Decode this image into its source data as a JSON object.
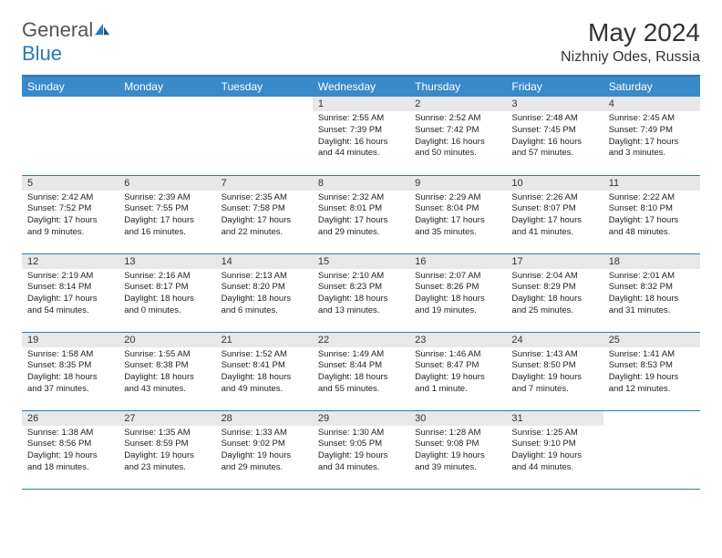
{
  "logo": {
    "text1": "General",
    "text2": "Blue"
  },
  "title": "May 2024",
  "location": "Nizhniy Odes, Russia",
  "colors": {
    "header_bg": "#3a8ac9",
    "line": "#2a7ab9",
    "daynum_bg": "#e8e8e8",
    "text": "#222222",
    "logo_gray": "#555555"
  },
  "weekdays": [
    "Sunday",
    "Monday",
    "Tuesday",
    "Wednesday",
    "Thursday",
    "Friday",
    "Saturday"
  ],
  "weeks": [
    [
      null,
      null,
      null,
      {
        "n": "1",
        "sr": "2:55 AM",
        "ss": "7:39 PM",
        "dl": "16 hours and 44 minutes."
      },
      {
        "n": "2",
        "sr": "2:52 AM",
        "ss": "7:42 PM",
        "dl": "16 hours and 50 minutes."
      },
      {
        "n": "3",
        "sr": "2:48 AM",
        "ss": "7:45 PM",
        "dl": "16 hours and 57 minutes."
      },
      {
        "n": "4",
        "sr": "2:45 AM",
        "ss": "7:49 PM",
        "dl": "17 hours and 3 minutes."
      }
    ],
    [
      {
        "n": "5",
        "sr": "2:42 AM",
        "ss": "7:52 PM",
        "dl": "17 hours and 9 minutes."
      },
      {
        "n": "6",
        "sr": "2:39 AM",
        "ss": "7:55 PM",
        "dl": "17 hours and 16 minutes."
      },
      {
        "n": "7",
        "sr": "2:35 AM",
        "ss": "7:58 PM",
        "dl": "17 hours and 22 minutes."
      },
      {
        "n": "8",
        "sr": "2:32 AM",
        "ss": "8:01 PM",
        "dl": "17 hours and 29 minutes."
      },
      {
        "n": "9",
        "sr": "2:29 AM",
        "ss": "8:04 PM",
        "dl": "17 hours and 35 minutes."
      },
      {
        "n": "10",
        "sr": "2:26 AM",
        "ss": "8:07 PM",
        "dl": "17 hours and 41 minutes."
      },
      {
        "n": "11",
        "sr": "2:22 AM",
        "ss": "8:10 PM",
        "dl": "17 hours and 48 minutes."
      }
    ],
    [
      {
        "n": "12",
        "sr": "2:19 AM",
        "ss": "8:14 PM",
        "dl": "17 hours and 54 minutes."
      },
      {
        "n": "13",
        "sr": "2:16 AM",
        "ss": "8:17 PM",
        "dl": "18 hours and 0 minutes."
      },
      {
        "n": "14",
        "sr": "2:13 AM",
        "ss": "8:20 PM",
        "dl": "18 hours and 6 minutes."
      },
      {
        "n": "15",
        "sr": "2:10 AM",
        "ss": "8:23 PM",
        "dl": "18 hours and 13 minutes."
      },
      {
        "n": "16",
        "sr": "2:07 AM",
        "ss": "8:26 PM",
        "dl": "18 hours and 19 minutes."
      },
      {
        "n": "17",
        "sr": "2:04 AM",
        "ss": "8:29 PM",
        "dl": "18 hours and 25 minutes."
      },
      {
        "n": "18",
        "sr": "2:01 AM",
        "ss": "8:32 PM",
        "dl": "18 hours and 31 minutes."
      }
    ],
    [
      {
        "n": "19",
        "sr": "1:58 AM",
        "ss": "8:35 PM",
        "dl": "18 hours and 37 minutes."
      },
      {
        "n": "20",
        "sr": "1:55 AM",
        "ss": "8:38 PM",
        "dl": "18 hours and 43 minutes."
      },
      {
        "n": "21",
        "sr": "1:52 AM",
        "ss": "8:41 PM",
        "dl": "18 hours and 49 minutes."
      },
      {
        "n": "22",
        "sr": "1:49 AM",
        "ss": "8:44 PM",
        "dl": "18 hours and 55 minutes."
      },
      {
        "n": "23",
        "sr": "1:46 AM",
        "ss": "8:47 PM",
        "dl": "19 hours and 1 minute."
      },
      {
        "n": "24",
        "sr": "1:43 AM",
        "ss": "8:50 PM",
        "dl": "19 hours and 7 minutes."
      },
      {
        "n": "25",
        "sr": "1:41 AM",
        "ss": "8:53 PM",
        "dl": "19 hours and 12 minutes."
      }
    ],
    [
      {
        "n": "26",
        "sr": "1:38 AM",
        "ss": "8:56 PM",
        "dl": "19 hours and 18 minutes."
      },
      {
        "n": "27",
        "sr": "1:35 AM",
        "ss": "8:59 PM",
        "dl": "19 hours and 23 minutes."
      },
      {
        "n": "28",
        "sr": "1:33 AM",
        "ss": "9:02 PM",
        "dl": "19 hours and 29 minutes."
      },
      {
        "n": "29",
        "sr": "1:30 AM",
        "ss": "9:05 PM",
        "dl": "19 hours and 34 minutes."
      },
      {
        "n": "30",
        "sr": "1:28 AM",
        "ss": "9:08 PM",
        "dl": "19 hours and 39 minutes."
      },
      {
        "n": "31",
        "sr": "1:25 AM",
        "ss": "9:10 PM",
        "dl": "19 hours and 44 minutes."
      },
      null
    ]
  ],
  "labels": {
    "sunrise": "Sunrise:",
    "sunset": "Sunset:",
    "daylight": "Daylight:"
  }
}
